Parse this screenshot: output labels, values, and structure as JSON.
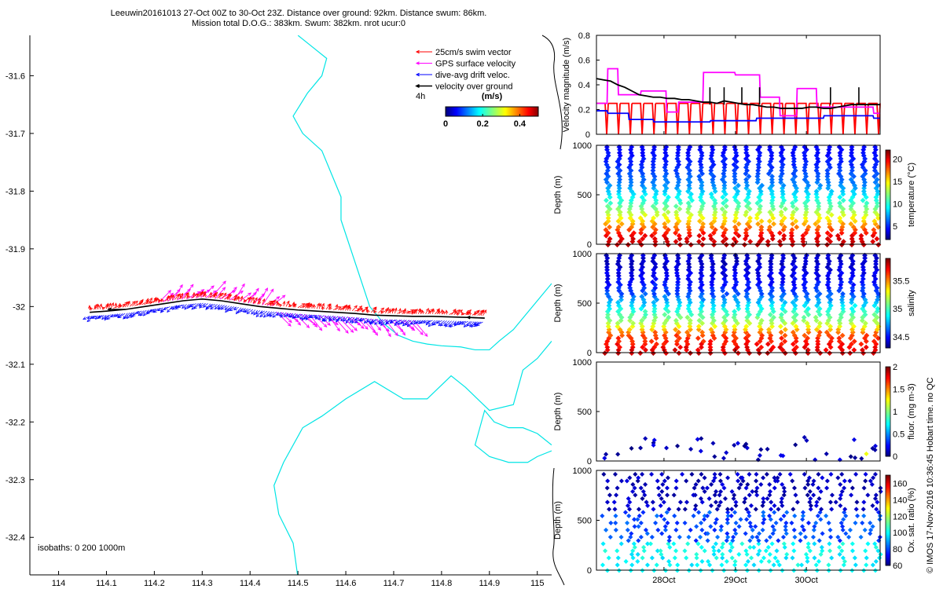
{
  "titles": {
    "line1": "Leeuwin20161013 27-Oct 00Z to 30-Oct 23Z. Distance over ground: 92km. Distance swum: 86km.",
    "line2": "Mission total D.O.G.: 383km. Swum: 382km. nrot ucur:0"
  },
  "credit": "© IMOS 17-Nov-2016 10:36:45 Hobart time. no QC",
  "colors": {
    "swim": "#ff0000",
    "gps": "#ff00ff",
    "drift": "#0000ff",
    "ground": "#000000",
    "coast": "#00e5e5",
    "axis": "#000000"
  },
  "chart_data": [
    {
      "type": "scatter",
      "id": "map",
      "title": "",
      "xlabel": "",
      "ylabel": "",
      "xlim": [
        113.94,
        115.03
      ],
      "ylim": [
        -32.465,
        -31.53
      ],
      "xticks": [
        "114",
        "114.1",
        "114.2",
        "114.3",
        "114.4",
        "114.5",
        "114.6",
        "114.7",
        "114.8",
        "114.9",
        "115"
      ],
      "yticks": [
        "-31.6",
        "-31.7",
        "-31.8",
        "-31.9",
        "-32",
        "-32.1",
        "-32.2",
        "-32.3",
        "-32.4"
      ],
      "legend": {
        "placement": "top-right",
        "entries": [
          "25cm/s swim vector",
          "GPS surface velocity",
          "dive-avg drift veloc.",
          "velocity over ground"
        ]
      },
      "annotation_4h": "4h",
      "colorbar": {
        "title": "(m/s)",
        "ticks": [
          "0",
          "0.2",
          "0.4"
        ],
        "range": [
          0,
          0.5
        ]
      },
      "isobaths_label": "isobaths: 0   200   1000m",
      "track": {
        "lon": [
          114.065,
          114.1,
          114.14,
          114.18,
          114.22,
          114.26,
          114.3,
          114.34,
          114.38,
          114.42,
          114.46,
          114.5,
          114.54,
          114.58,
          114.62,
          114.66,
          114.7,
          114.74,
          114.78,
          114.82,
          114.86,
          114.89
        ],
        "lat": [
          -32.01,
          -32.008,
          -32.005,
          -32.0,
          -31.995,
          -31.99,
          -31.987,
          -31.99,
          -31.995,
          -32.0,
          -32.003,
          -32.006,
          -32.008,
          -32.01,
          -32.012,
          -32.015,
          -32.016,
          -32.017,
          -32.017,
          -32.018,
          -32.019,
          -32.02
        ]
      },
      "coastlines": [
        [
          [
            114.5,
            -31.53
          ],
          [
            114.53,
            -31.55
          ],
          [
            114.56,
            -31.57
          ],
          [
            114.55,
            -31.6
          ],
          [
            114.52,
            -31.63
          ],
          [
            114.49,
            -31.67
          ],
          [
            114.51,
            -31.7
          ],
          [
            114.55,
            -31.73
          ],
          [
            114.57,
            -31.77
          ],
          [
            114.59,
            -31.81
          ],
          [
            114.59,
            -31.85
          ],
          [
            114.61,
            -31.9
          ],
          [
            114.63,
            -31.95
          ],
          [
            114.65,
            -32.0
          ],
          [
            114.68,
            -32.03
          ],
          [
            114.71,
            -32.05
          ],
          [
            114.74,
            -32.06
          ],
          [
            114.77,
            -32.065
          ],
          [
            114.8,
            -32.068
          ],
          [
            114.84,
            -32.07
          ],
          [
            114.87,
            -32.075
          ],
          [
            114.9,
            -32.075
          ],
          [
            114.92,
            -32.06
          ],
          [
            114.95,
            -32.04
          ],
          [
            114.97,
            -32.02
          ],
          [
            115.0,
            -31.99
          ],
          [
            115.03,
            -31.96
          ]
        ],
        [
          [
            115.03,
            -32.06
          ],
          [
            115.0,
            -32.09
          ],
          [
            114.97,
            -32.11
          ],
          [
            114.96,
            -32.14
          ],
          [
            114.95,
            -32.17
          ],
          [
            114.9,
            -32.18
          ],
          [
            114.85,
            -32.14
          ],
          [
            114.82,
            -32.12
          ],
          [
            114.77,
            -32.16
          ],
          [
            114.72,
            -32.16
          ],
          [
            114.66,
            -32.13
          ],
          [
            114.6,
            -32.16
          ],
          [
            114.55,
            -32.19
          ],
          [
            114.51,
            -32.21
          ],
          [
            114.47,
            -32.27
          ],
          [
            114.45,
            -32.31
          ],
          [
            114.46,
            -32.36
          ],
          [
            114.49,
            -32.41
          ],
          [
            114.5,
            -32.47
          ]
        ],
        [
          [
            115.03,
            -32.24
          ],
          [
            115.0,
            -32.22
          ],
          [
            114.97,
            -32.21
          ],
          [
            114.94,
            -32.21
          ],
          [
            114.91,
            -32.2
          ],
          [
            114.89,
            -32.18
          ],
          [
            114.88,
            -32.21
          ],
          [
            114.87,
            -32.24
          ],
          [
            114.9,
            -32.26
          ],
          [
            114.94,
            -32.27
          ],
          [
            114.98,
            -32.27
          ],
          [
            115.0,
            -32.26
          ],
          [
            115.03,
            -32.25
          ]
        ]
      ]
    },
    {
      "type": "line",
      "id": "velocity",
      "title": "",
      "xlabel": "",
      "ylabel": "Velocity magnitude (m/s)",
      "xlim": [
        0,
        4
      ],
      "ylim": [
        0,
        0.8
      ],
      "yticks": [
        "0",
        "0.2",
        "0.4",
        "0.6",
        "0.8"
      ],
      "series": [
        {
          "color": "#ff00ff",
          "x": [
            0,
            0.15,
            0.16,
            0.3,
            0.31,
            0.62,
            0.63,
            0.98,
            0.99,
            1.15,
            1.16,
            1.5,
            1.51,
            1.95,
            1.96,
            2.3,
            2.31,
            2.58,
            2.59,
            2.82,
            2.83,
            3.1,
            3.11,
            3.9,
            3.91,
            4.0
          ],
          "y": [
            0.25,
            0.25,
            0.53,
            0.53,
            0.32,
            0.32,
            0.35,
            0.35,
            0.18,
            0.18,
            0.26,
            0.26,
            0.5,
            0.5,
            0.48,
            0.48,
            0.3,
            0.3,
            0.15,
            0.15,
            0.37,
            0.37,
            0.22,
            0.22,
            0.17,
            0.17
          ]
        },
        {
          "color": "#0000ff",
          "x": [
            0,
            0.15,
            0.16,
            0.45,
            0.46,
            0.8,
            0.81,
            1.6,
            1.61,
            2.25,
            2.26,
            3.2,
            3.21,
            3.9,
            3.91,
            4.0
          ],
          "y": [
            0.19,
            0.19,
            0.17,
            0.17,
            0.12,
            0.12,
            0.1,
            0.1,
            0.11,
            0.11,
            0.13,
            0.13,
            0.15,
            0.15,
            0.13,
            0.13
          ]
        },
        {
          "color": "#000000",
          "x": [
            0,
            0.1,
            0.2,
            0.3,
            0.4,
            0.5,
            0.6,
            0.7,
            0.8,
            0.9,
            1.0,
            1.1,
            1.2,
            1.3,
            1.4,
            1.5,
            1.6,
            1.7,
            1.8,
            1.9,
            2.0,
            2.1,
            2.2,
            2.3,
            2.4,
            2.5,
            2.6,
            2.7,
            2.8,
            2.9,
            3.0,
            3.1,
            3.2,
            3.3,
            3.4,
            3.5,
            3.6,
            3.7,
            3.8,
            3.9,
            4.0
          ],
          "y": [
            0.45,
            0.44,
            0.43,
            0.4,
            0.38,
            0.35,
            0.32,
            0.31,
            0.3,
            0.3,
            0.29,
            0.29,
            0.28,
            0.28,
            0.27,
            0.26,
            0.26,
            0.25,
            0.27,
            0.26,
            0.25,
            0.24,
            0.24,
            0.23,
            0.22,
            0.22,
            0.21,
            0.21,
            0.21,
            0.21,
            0.22,
            0.22,
            0.21,
            0.21,
            0.22,
            0.23,
            0.24,
            0.24,
            0.24,
            0.24,
            0.24
          ]
        },
        {
          "color": "#ff0000",
          "x": [],
          "y": []
        }
      ],
      "red_swim_dives": 24
    },
    {
      "type": "scatter",
      "id": "temperature",
      "ylabel": "Depth (m)",
      "ylim": [
        1000,
        0
      ],
      "yticks": [
        "0",
        "500",
        "1000"
      ],
      "colorbar": {
        "label": "temperature (°C)",
        "ticks": [
          "5",
          "10",
          "15",
          "20"
        ],
        "range": [
          2,
          22
        ]
      },
      "profile": {
        "depth": [
          0,
          100,
          200,
          300,
          400,
          500,
          600,
          700,
          800,
          900,
          1000
        ],
        "value": [
          21,
          20,
          17,
          14,
          11,
          9,
          7,
          6,
          5,
          4.5,
          4
        ]
      },
      "dives": 24
    },
    {
      "type": "scatter",
      "id": "salinity",
      "ylabel": "Depth (m)",
      "ylim": [
        1000,
        0
      ],
      "yticks": [
        "0",
        "500",
        "1000"
      ],
      "colorbar": {
        "label": "salinity",
        "ticks": [
          "34.5",
          "35",
          "35.5"
        ],
        "range": [
          34.3,
          35.9
        ]
      },
      "profile": {
        "depth": [
          0,
          100,
          200,
          300,
          400,
          500,
          600,
          700,
          800,
          900,
          1000
        ],
        "value": [
          35.8,
          35.7,
          35.6,
          35.2,
          35.0,
          34.8,
          34.6,
          34.5,
          34.45,
          34.4,
          34.4
        ]
      },
      "dives": 24
    },
    {
      "type": "scatter",
      "id": "fluorescence",
      "ylabel": "Depth (m)",
      "ylim": [
        1000,
        0
      ],
      "yticks": [
        "0",
        "500",
        "1000"
      ],
      "colorbar": {
        "label": "fluor. (mg m-3)",
        "ticks": [
          "0",
          "0.5",
          "1",
          "1.5",
          "2"
        ],
        "range": [
          0,
          2
        ]
      },
      "dives": 24
    },
    {
      "type": "scatter",
      "id": "oxygen",
      "ylabel": "Depth (m)",
      "ylim": [
        1000,
        0
      ],
      "yticks": [
        "0",
        "500",
        "1000"
      ],
      "xticks": [
        "28Oct",
        "29Oct",
        "30Oct"
      ],
      "colorbar": {
        "label": "Ox. sat. ratio (%)",
        "ticks": [
          "60",
          "80",
          "100",
          "120",
          "140",
          "160"
        ],
        "range": [
          60,
          170
        ]
      },
      "dives": 24
    }
  ]
}
